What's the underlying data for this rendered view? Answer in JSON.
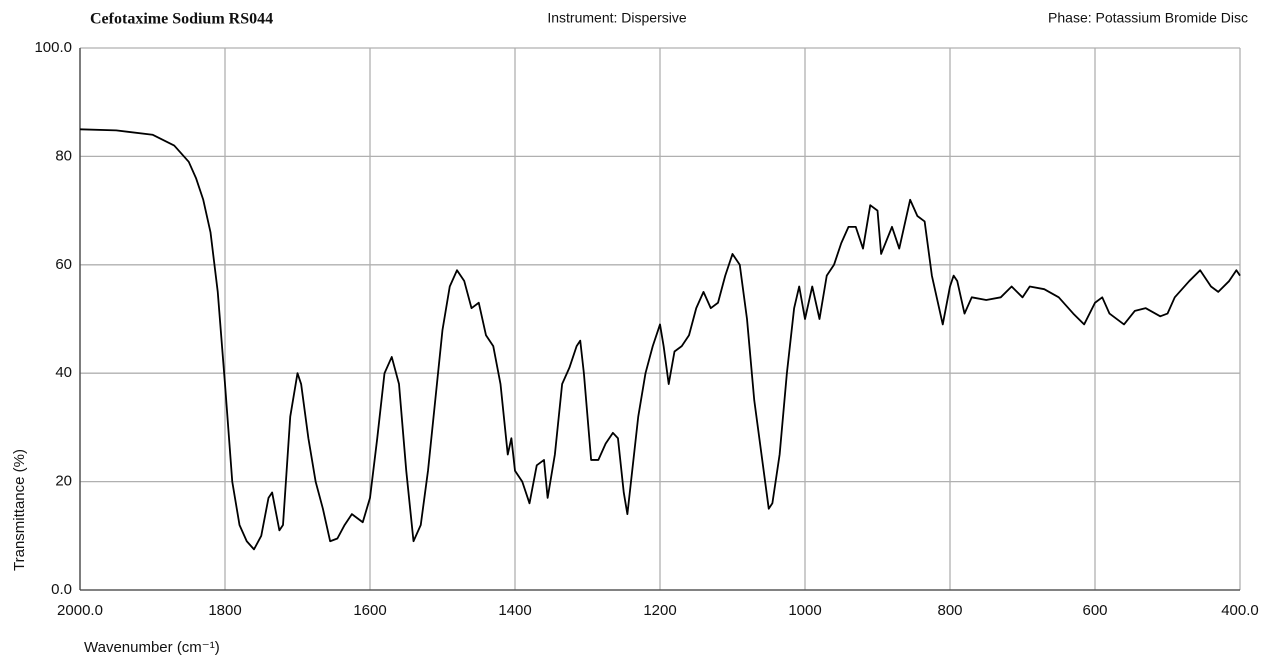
{
  "chart_data": {
    "type": "line",
    "title": "Cefotaxime Sodium RS044",
    "instrument": "Instrument:  Dispersive",
    "phase": "Phase:  Potassium Bromide Disc",
    "x_label": "Wavenumber (cm⁻¹)",
    "y_label": "Transmittance (%)",
    "color": "#000000",
    "grid": true,
    "x_reversed": true,
    "xlim": [
      2000,
      400
    ],
    "ylim": [
      0,
      100
    ],
    "xticks": [
      {
        "value": 2000,
        "label": "2000.0"
      },
      1800,
      1600,
      1400,
      1200,
      1000,
      800,
      600,
      {
        "value": 400,
        "label": "400.0"
      }
    ],
    "yticks": [
      {
        "value": 0,
        "label": "0.0"
      },
      20,
      40,
      60,
      80,
      {
        "value": 100,
        "label": "100.0"
      }
    ],
    "x": [
      2000,
      1950,
      1900,
      1870,
      1850,
      1840,
      1830,
      1820,
      1810,
      1800,
      1790,
      1780,
      1770,
      1760,
      1750,
      1740,
      1735,
      1725,
      1720,
      1710,
      1700,
      1695,
      1685,
      1675,
      1665,
      1655,
      1645,
      1635,
      1625,
      1610,
      1600,
      1590,
      1580,
      1570,
      1560,
      1550,
      1540,
      1530,
      1520,
      1510,
      1500,
      1490,
      1480,
      1470,
      1460,
      1450,
      1440,
      1430,
      1420,
      1410,
      1405,
      1400,
      1390,
      1380,
      1370,
      1360,
      1355,
      1345,
      1335,
      1325,
      1315,
      1310,
      1305,
      1295,
      1285,
      1275,
      1265,
      1258,
      1250,
      1245,
      1240,
      1230,
      1220,
      1210,
      1200,
      1195,
      1188,
      1180,
      1170,
      1160,
      1150,
      1140,
      1130,
      1120,
      1110,
      1100,
      1090,
      1080,
      1070,
      1060,
      1050,
      1045,
      1035,
      1025,
      1015,
      1008,
      1000,
      990,
      980,
      970,
      960,
      950,
      940,
      930,
      920,
      910,
      900,
      895,
      880,
      870,
      855,
      845,
      835,
      825,
      815,
      810,
      800,
      795,
      790,
      780,
      770,
      750,
      730,
      715,
      700,
      690,
      670,
      650,
      630,
      615,
      600,
      590,
      580,
      560,
      545,
      530,
      510,
      500,
      490,
      470,
      455,
      440,
      430,
      415,
      405,
      400
    ],
    "values": [
      85,
      84.8,
      84,
      82,
      79,
      76,
      72,
      66,
      55,
      38,
      20,
      12,
      9,
      7.5,
      10,
      17,
      18,
      11,
      12,
      32,
      40,
      38,
      28,
      20,
      15,
      9,
      9.5,
      12,
      14,
      12.5,
      17,
      28,
      40,
      43,
      38,
      22,
      9,
      12,
      22,
      35,
      48,
      56,
      59,
      57,
      52,
      53,
      47,
      45,
      38,
      25,
      28,
      22,
      20,
      16,
      23,
      24,
      17,
      25,
      38,
      41,
      45,
      46,
      40,
      24,
      24,
      27,
      29,
      28,
      18,
      14,
      20,
      32,
      40,
      45,
      49,
      45,
      38,
      44,
      45,
      47,
      52,
      55,
      52,
      53,
      58,
      62,
      60,
      50,
      35,
      25,
      15,
      16,
      25,
      40,
      52,
      56,
      50,
      56,
      50,
      58,
      60,
      64,
      67,
      67,
      63,
      71,
      70,
      62,
      67,
      63,
      72,
      69,
      68,
      58,
      52,
      49,
      56,
      58,
      57,
      51,
      54,
      53.5,
      54,
      56,
      54,
      56,
      55.5,
      54,
      51,
      49,
      53,
      54,
      51,
      49,
      51.5,
      52,
      50.5,
      51,
      54,
      57,
      59,
      56,
      55,
      57,
      59,
      58
    ]
  }
}
